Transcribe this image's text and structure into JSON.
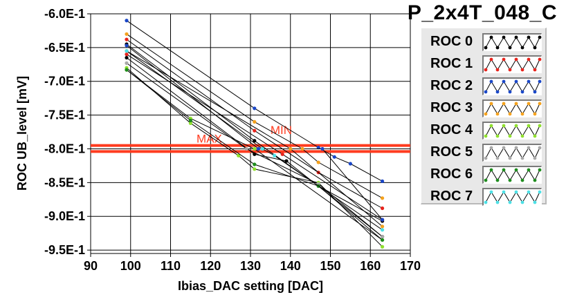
{
  "title": "P_2x4T_048_C",
  "legend": [
    {
      "label": "ROC 0",
      "color": "#000000"
    },
    {
      "label": "ROC 1",
      "color": "#e8231c"
    },
    {
      "label": "ROC 2",
      "color": "#1a47c8"
    },
    {
      "label": "ROC 3",
      "color": "#f5a21d"
    },
    {
      "label": "ROC 4",
      "color": "#8fe02d"
    },
    {
      "label": "ROC 5",
      "color": "#a8a8a8"
    },
    {
      "label": "ROC 6",
      "color": "#1e8c1e"
    },
    {
      "label": "ROC 7",
      "color": "#4de0e6"
    }
  ],
  "chart_data": {
    "type": "line",
    "xlabel": "Ibias_DAC setting [DAC]",
    "ylabel": "ROC UB_level [mV]",
    "xlim": [
      90,
      170
    ],
    "ylim": [
      -0.955,
      -0.6
    ],
    "x_ticks": [
      "90",
      "100",
      "110",
      "120",
      "130",
      "140",
      "150",
      "160",
      "170"
    ],
    "y_ticks": [
      "-6.0E-1",
      "-6.5E-1",
      "-7.0E-1",
      "-7.5E-1",
      "-8.0E-1",
      "-8.5E-1",
      "-9.0E-1",
      "-9.5E-1"
    ],
    "grid": true,
    "hlines": [
      {
        "label": "MIN",
        "y": -0.795,
        "color": "#ff3b1f"
      },
      {
        "label": "MAX",
        "y": -0.804,
        "color": "#ff3b1f"
      }
    ],
    "series": [
      {
        "color": "#000000",
        "points": [
          [
            99,
            -0.645
          ],
          [
            131,
            -0.788
          ],
          [
            147,
            -0.855
          ],
          [
            163,
            -0.907
          ]
        ]
      },
      {
        "color": "#000000",
        "points": [
          [
            99,
            -0.665
          ],
          [
            131,
            -0.808
          ],
          [
            139,
            -0.818
          ],
          [
            163,
            -0.93
          ]
        ]
      },
      {
        "color": "#e8231c",
        "points": [
          [
            99,
            -0.638
          ],
          [
            131,
            -0.773
          ],
          [
            147,
            -0.835
          ],
          [
            163,
            -0.888
          ]
        ]
      },
      {
        "color": "#e8231c",
        "points": [
          [
            99,
            -0.66
          ],
          [
            138,
            -0.808
          ],
          [
            163,
            -0.905
          ]
        ]
      },
      {
        "color": "#1a47c8",
        "points": [
          [
            99,
            -0.61
          ],
          [
            131,
            -0.74
          ],
          [
            147,
            -0.798
          ],
          [
            151,
            -0.812
          ],
          [
            155,
            -0.822
          ],
          [
            163,
            -0.848
          ]
        ]
      },
      {
        "color": "#1a47c8",
        "points": [
          [
            99,
            -0.647
          ],
          [
            132,
            -0.8
          ],
          [
            148,
            -0.8
          ],
          [
            163,
            -0.905
          ]
        ]
      },
      {
        "color": "#f5a21d",
        "points": [
          [
            99,
            -0.63
          ],
          [
            131,
            -0.76
          ],
          [
            143,
            -0.8
          ],
          [
            147,
            -0.82
          ],
          [
            163,
            -0.873
          ]
        ]
      },
      {
        "color": "#f5a21d",
        "points": [
          [
            99,
            -0.655
          ],
          [
            140,
            -0.8
          ],
          [
            163,
            -0.915
          ]
        ]
      },
      {
        "color": "#8fe02d",
        "points": [
          [
            99,
            -0.68
          ],
          [
            115,
            -0.762
          ],
          [
            127,
            -0.81
          ],
          [
            131,
            -0.83
          ],
          [
            147,
            -0.85
          ],
          [
            163,
            -0.945
          ]
        ]
      },
      {
        "color": "#8fe02d",
        "points": [
          [
            99,
            -0.683
          ],
          [
            115,
            -0.755
          ],
          [
            131,
            -0.8
          ],
          [
            163,
            -0.935
          ]
        ]
      },
      {
        "color": "#a8a8a8",
        "points": [
          [
            99,
            -0.673
          ],
          [
            129,
            -0.8
          ],
          [
            147,
            -0.852
          ],
          [
            163,
            -0.93
          ]
        ]
      },
      {
        "color": "#1e8c1e",
        "points": [
          [
            99,
            -0.683
          ],
          [
            115,
            -0.758
          ],
          [
            131,
            -0.823
          ],
          [
            147,
            -0.855
          ],
          [
            163,
            -0.935
          ]
        ]
      },
      {
        "color": "#4de0e6",
        "points": [
          [
            99,
            -0.655
          ],
          [
            133,
            -0.8
          ],
          [
            136,
            -0.81
          ],
          [
            163,
            -0.92
          ]
        ]
      }
    ]
  }
}
